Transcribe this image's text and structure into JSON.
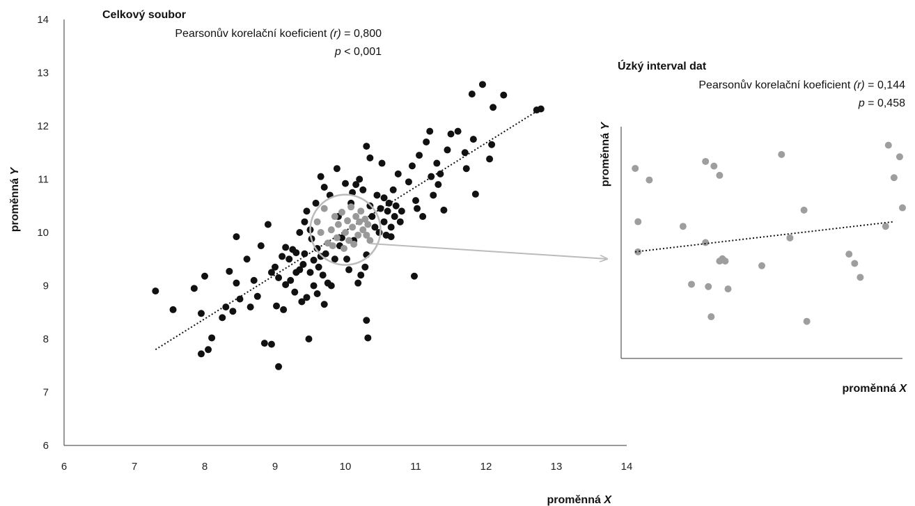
{
  "chart_data": [
    {
      "type": "scatter",
      "title": "Celkový soubor",
      "stat_r_label": "Pearsonův korelační koeficient",
      "stat_r_symbol": "(r)",
      "stat_r_value": "= 0,800",
      "stat_p_symbol": "p",
      "stat_p_value": "< 0,001",
      "xlabel": "proměnná",
      "xlabel_var": "X",
      "ylabel": "proměnná",
      "ylabel_var": "Y",
      "xlim": [
        6,
        14
      ],
      "ylim": [
        6,
        14
      ],
      "x_ticks": [
        "6",
        "7",
        "8",
        "9",
        "10",
        "11",
        "12",
        "13",
        "14"
      ],
      "y_ticks": [
        "6",
        "7",
        "8",
        "9",
        "10",
        "11",
        "12",
        "13",
        "14"
      ],
      "trendline": {
        "style": "dotted",
        "x": [
          7.3,
          12.75
        ],
        "y": [
          7.8,
          12.3
        ]
      },
      "highlight_circle": {
        "cx": 10.0,
        "cy": 10.05,
        "r": 0.5
      },
      "colors": {
        "points": "#111111",
        "highlight_points": "#999999",
        "circle": "#bbbbbb",
        "arrow": "#bbbbbb",
        "trendline": "#111111"
      },
      "points": [
        [
          7.3,
          8.9
        ],
        [
          7.55,
          8.55
        ],
        [
          7.85,
          8.95
        ],
        [
          7.95,
          8.48
        ],
        [
          7.95,
          7.72
        ],
        [
          8.0,
          9.18
        ],
        [
          8.05,
          7.8
        ],
        [
          8.1,
          8.02
        ],
        [
          8.25,
          8.4
        ],
        [
          8.3,
          8.6
        ],
        [
          8.35,
          9.27
        ],
        [
          8.4,
          8.52
        ],
        [
          8.45,
          9.92
        ],
        [
          8.45,
          9.05
        ],
        [
          8.5,
          8.75
        ],
        [
          8.6,
          9.5
        ],
        [
          8.65,
          8.6
        ],
        [
          8.7,
          9.1
        ],
        [
          8.75,
          8.8
        ],
        [
          8.8,
          9.75
        ],
        [
          8.85,
          7.92
        ],
        [
          8.9,
          10.15
        ],
        [
          8.95,
          7.9
        ],
        [
          8.95,
          9.25
        ],
        [
          9.0,
          9.35
        ],
        [
          9.02,
          8.62
        ],
        [
          9.05,
          7.48
        ],
        [
          9.05,
          9.15
        ],
        [
          9.1,
          9.55
        ],
        [
          9.12,
          8.55
        ],
        [
          9.15,
          9.02
        ],
        [
          9.15,
          9.72
        ],
        [
          9.2,
          9.5
        ],
        [
          9.22,
          9.1
        ],
        [
          9.25,
          9.68
        ],
        [
          9.28,
          8.88
        ],
        [
          9.3,
          9.25
        ],
        [
          9.3,
          9.62
        ],
        [
          9.35,
          10.0
        ],
        [
          9.35,
          9.3
        ],
        [
          9.38,
          8.7
        ],
        [
          9.4,
          9.4
        ],
        [
          9.42,
          10.2
        ],
        [
          9.42,
          9.6
        ],
        [
          9.45,
          8.78
        ],
        [
          9.45,
          10.4
        ],
        [
          9.48,
          8.0
        ],
        [
          9.5,
          10.05
        ],
        [
          9.5,
          9.25
        ],
        [
          9.52,
          9.88
        ],
        [
          9.55,
          9.48
        ],
        [
          9.55,
          9.0
        ],
        [
          9.58,
          10.55
        ],
        [
          9.6,
          9.7
        ],
        [
          9.6,
          8.85
        ],
        [
          9.62,
          9.35
        ],
        [
          9.65,
          11.05
        ],
        [
          9.65,
          9.55
        ],
        [
          9.68,
          9.2
        ],
        [
          9.7,
          10.85
        ],
        [
          9.7,
          8.65
        ],
        [
          9.72,
          9.6
        ],
        [
          9.75,
          9.05
        ],
        [
          9.78,
          10.7
        ],
        [
          9.8,
          9.0
        ],
        [
          9.85,
          9.5
        ],
        [
          9.88,
          11.2
        ],
        [
          9.9,
          10.3
        ],
        [
          9.92,
          9.75
        ],
        [
          9.95,
          9.9
        ],
        [
          10.0,
          10.92
        ],
        [
          10.02,
          9.5
        ],
        [
          10.05,
          9.3
        ],
        [
          10.08,
          10.55
        ],
        [
          10.1,
          10.75
        ],
        [
          10.12,
          9.85
        ],
        [
          10.15,
          10.9
        ],
        [
          10.18,
          9.05
        ],
        [
          10.2,
          11.0
        ],
        [
          10.22,
          9.2
        ],
        [
          10.25,
          10.8
        ],
        [
          10.28,
          9.35
        ],
        [
          10.3,
          11.62
        ],
        [
          10.3,
          9.58
        ],
        [
          10.3,
          8.35
        ],
        [
          10.32,
          8.02
        ],
        [
          10.35,
          11.4
        ],
        [
          10.35,
          10.5
        ],
        [
          10.38,
          10.3
        ],
        [
          10.42,
          10.1
        ],
        [
          10.45,
          10.7
        ],
        [
          10.48,
          10.0
        ],
        [
          10.5,
          10.45
        ],
        [
          10.52,
          11.3
        ],
        [
          10.55,
          10.65
        ],
        [
          10.55,
          10.2
        ],
        [
          10.58,
          9.95
        ],
        [
          10.6,
          10.4
        ],
        [
          10.62,
          10.55
        ],
        [
          10.65,
          10.1
        ],
        [
          10.65,
          9.92
        ],
        [
          10.68,
          10.8
        ],
        [
          10.7,
          10.3
        ],
        [
          10.72,
          10.5
        ],
        [
          10.75,
          11.1
        ],
        [
          10.78,
          10.2
        ],
        [
          10.8,
          10.4
        ],
        [
          10.9,
          10.95
        ],
        [
          10.95,
          11.25
        ],
        [
          10.98,
          9.18
        ],
        [
          11.0,
          10.6
        ],
        [
          11.02,
          10.45
        ],
        [
          11.05,
          11.45
        ],
        [
          11.1,
          10.3
        ],
        [
          11.15,
          11.7
        ],
        [
          11.2,
          11.9
        ],
        [
          11.22,
          11.05
        ],
        [
          11.25,
          10.7
        ],
        [
          11.3,
          11.3
        ],
        [
          11.32,
          10.9
        ],
        [
          11.35,
          11.1
        ],
        [
          11.4,
          10.42
        ],
        [
          11.45,
          11.55
        ],
        [
          11.5,
          11.85
        ],
        [
          11.6,
          11.9
        ],
        [
          11.7,
          11.5
        ],
        [
          11.72,
          11.2
        ],
        [
          11.8,
          12.6
        ],
        [
          11.82,
          11.75
        ],
        [
          11.85,
          10.72
        ],
        [
          11.95,
          12.78
        ],
        [
          12.05,
          11.38
        ],
        [
          12.08,
          11.65
        ],
        [
          12.1,
          12.35
        ],
        [
          12.25,
          12.58
        ],
        [
          12.72,
          12.3
        ],
        [
          12.78,
          12.32
        ]
      ],
      "highlight_points": [
        [
          9.6,
          10.2
        ],
        [
          9.65,
          10.0
        ],
        [
          9.7,
          10.45
        ],
        [
          9.75,
          9.8
        ],
        [
          9.8,
          10.05
        ],
        [
          9.82,
          9.75
        ],
        [
          9.85,
          10.3
        ],
        [
          9.88,
          9.9
        ],
        [
          9.9,
          10.15
        ],
        [
          9.95,
          10.38
        ],
        [
          9.98,
          9.7
        ],
        [
          10.0,
          10.0
        ],
        [
          10.03,
          10.22
        ],
        [
          10.05,
          9.85
        ],
        [
          10.08,
          10.48
        ],
        [
          10.1,
          10.1
        ],
        [
          10.12,
          9.78
        ],
        [
          10.15,
          10.3
        ],
        [
          10.18,
          9.95
        ],
        [
          10.2,
          10.2
        ],
        [
          10.22,
          10.4
        ],
        [
          10.25,
          10.05
        ],
        [
          10.28,
          10.25
        ],
        [
          10.3,
          9.95
        ],
        [
          10.32,
          10.15
        ],
        [
          10.35,
          9.85
        ]
      ]
    },
    {
      "type": "scatter",
      "title": "Úzký interval dat",
      "stat_r_label": "Pearsonův korelační koeficient",
      "stat_r_symbol": "(r)",
      "stat_r_value": "= 0,144",
      "stat_p_symbol": "p",
      "stat_p_value": "= 0,458",
      "xlabel": "proměnná",
      "xlabel_var": "X",
      "ylabel": "proměnná",
      "ylabel_var": "Y",
      "xlim": [
        9.5,
        10.5
      ],
      "ylim": [
        9.5,
        10.5
      ],
      "trendline": {
        "style": "dotted",
        "x": [
          9.55,
          10.47
        ],
        "y": [
          9.96,
          10.09
        ]
      },
      "colors": {
        "points": "#9e9e9e",
        "trendline": "#111111"
      },
      "points": [
        [
          9.55,
          10.32
        ],
        [
          9.56,
          10.09
        ],
        [
          9.56,
          9.96
        ],
        [
          9.6,
          10.27
        ],
        [
          9.72,
          10.07
        ],
        [
          9.75,
          9.82
        ],
        [
          9.82,
          9.68
        ],
        [
          9.8,
          10.35
        ],
        [
          9.8,
          10.0
        ],
        [
          9.81,
          9.81
        ],
        [
          9.83,
          10.33
        ],
        [
          9.85,
          9.92
        ],
        [
          9.85,
          10.29
        ],
        [
          9.86,
          9.93
        ],
        [
          9.87,
          9.92
        ],
        [
          9.88,
          9.8
        ],
        [
          10.0,
          9.9
        ],
        [
          10.07,
          10.38
        ],
        [
          10.1,
          10.02
        ],
        [
          10.15,
          10.14
        ],
        [
          10.16,
          9.66
        ],
        [
          10.31,
          9.95
        ],
        [
          10.33,
          9.91
        ],
        [
          10.35,
          9.85
        ],
        [
          10.44,
          10.07
        ],
        [
          10.45,
          10.42
        ],
        [
          10.47,
          10.28
        ],
        [
          10.49,
          10.37
        ],
        [
          10.5,
          10.15
        ]
      ]
    }
  ]
}
